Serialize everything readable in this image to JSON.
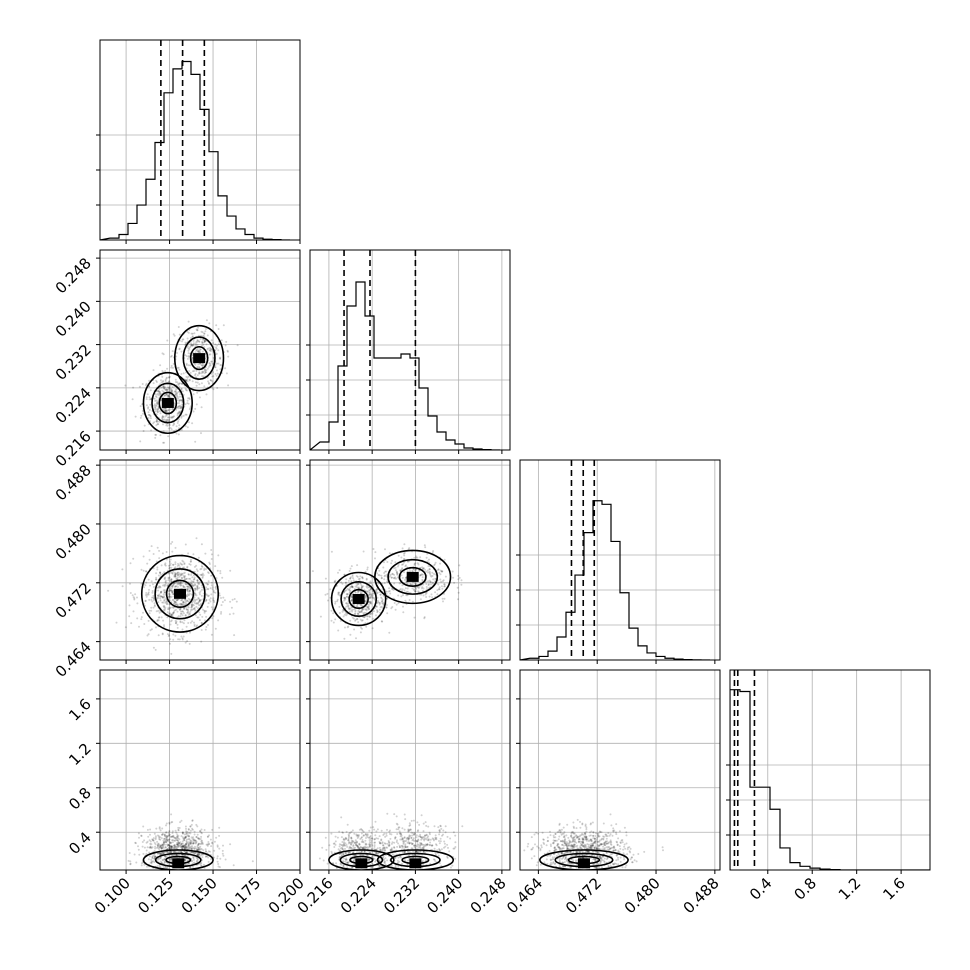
{
  "chart_data": {
    "type": "corner",
    "params": [
      {
        "range": [
          0.085,
          0.2
        ],
        "ticks": [
          0.1,
          0.125,
          0.15,
          0.175,
          0.2
        ],
        "tick_labels": [
          "0.100",
          "0.125",
          "0.150",
          "0.175",
          "0.200"
        ]
      },
      {
        "range": [
          0.2125,
          0.2495
        ],
        "ticks": [
          0.216,
          0.224,
          0.232,
          0.24,
          0.248
        ],
        "tick_labels": [
          "0.216",
          "0.224",
          "0.232",
          "0.240",
          "0.248"
        ]
      },
      {
        "range": [
          0.4615,
          0.4887
        ],
        "ticks": [
          0.464,
          0.472,
          0.48,
          0.488
        ],
        "tick_labels": [
          "0.464",
          "0.472",
          "0.480",
          "0.488"
        ]
      },
      {
        "range": [
          0.06,
          1.86
        ],
        "ticks": [
          0.4,
          0.8,
          1.2,
          1.6
        ],
        "tick_labels": [
          "0.4",
          "0.8",
          "1.2",
          "1.6"
        ]
      }
    ],
    "histograms": [
      {
        "counts": [
          1,
          3,
          9,
          19,
          33,
          53,
          80,
          93,
          97,
          90,
          71,
          48,
          24,
          13,
          6,
          3,
          1,
          0.4,
          0.2,
          0
        ],
        "quantiles": [
          0.12,
          0.1325,
          0.145
        ],
        "hist_max": 100
      },
      {
        "counts": [
          4,
          14,
          42,
          72,
          84,
          67,
          46,
          46,
          46,
          48,
          46,
          31,
          17,
          9,
          5,
          3,
          1,
          0.5,
          0.2,
          0
        ],
        "quantiles": [
          0.2188,
          0.2236,
          0.232
        ],
        "hist_max": 92
      },
      {
        "counts": [
          1,
          2,
          5,
          13,
          27,
          48,
          72,
          90,
          88,
          67,
          38,
          18,
          8,
          4,
          2,
          1,
          0.5,
          0.2,
          0.1,
          0
        ],
        "quantiles": [
          0.4685,
          0.4701,
          0.4716
        ],
        "hist_max": 104
      },
      {
        "counts": [
          98,
          97,
          45,
          45,
          33,
          12,
          4,
          2,
          1,
          0.5,
          0.2,
          0,
          0,
          0,
          0,
          0,
          0,
          0,
          0,
          0
        ],
        "quantiles": [
          0.1,
          0.13,
          0.28
        ],
        "hist_max": 100
      }
    ],
    "pairs": [
      {
        "row": 1,
        "col": 0,
        "samples": [
          {
            "mean": [
              0.124,
              0.2212
            ],
            "sd": [
              0.007,
              0.0028
            ],
            "w": 0.55
          },
          {
            "mean": [
              0.142,
              0.2295
            ],
            "sd": [
              0.007,
              0.003
            ],
            "w": 0.45
          }
        ]
      },
      {
        "row": 2,
        "col": 0,
        "samples": [
          {
            "mean": [
              0.131,
              0.4705
            ],
            "sd": [
              0.011,
              0.0026
            ],
            "w": 1.0
          }
        ]
      },
      {
        "row": 2,
        "col": 1,
        "samples": [
          {
            "mean": [
              0.2215,
              0.4698
            ],
            "sd": [
              0.0025,
              0.0018
            ],
            "w": 0.55
          },
          {
            "mean": [
              0.2315,
              0.4728
            ],
            "sd": [
              0.0035,
              0.0018
            ],
            "w": 0.45
          }
        ]
      },
      {
        "row": 3,
        "col": 0,
        "samples": [
          {
            "mean": [
              0.13,
              0.15
            ],
            "sd": [
              0.01,
              0.1
            ],
            "w": 1.0
          }
        ]
      },
      {
        "row": 3,
        "col": 1,
        "samples": [
          {
            "mean": [
              0.222,
              0.15
            ],
            "sd": [
              0.003,
              0.1
            ],
            "w": 0.55
          },
          {
            "mean": [
              0.232,
              0.2
            ],
            "sd": [
              0.0035,
              0.1
            ],
            "w": 0.45
          }
        ]
      },
      {
        "row": 3,
        "col": 2,
        "samples": [
          {
            "mean": [
              0.4702,
              0.15
            ],
            "sd": [
              0.003,
              0.1
            ],
            "w": 1.0
          }
        ]
      }
    ],
    "grid": true,
    "quantile_style": "dashed"
  }
}
